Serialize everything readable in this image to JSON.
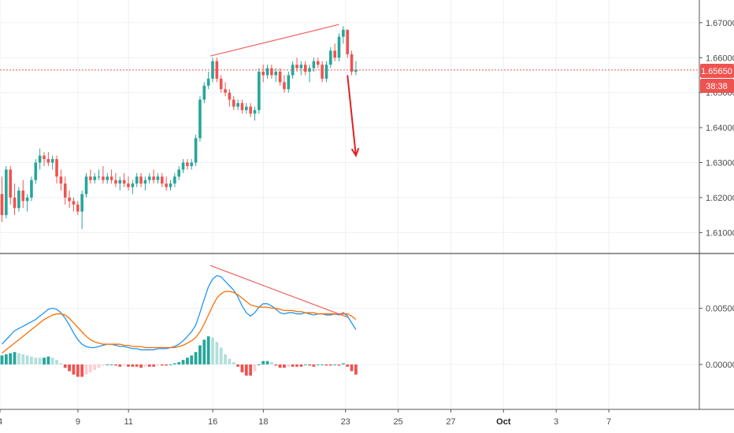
{
  "colors": {
    "up": "#26a69a",
    "down": "#ef5350",
    "hist_up_strong": "#26a69a",
    "hist_up_weak": "#b2dfdb",
    "hist_down_strong": "#ef5350",
    "hist_down_weak": "#ffcdd2",
    "macd_line": "#2196f3",
    "signal_line": "#ff6d00",
    "trendline": "#f06060",
    "arrow": "#e02020",
    "price_line": "#ef5350",
    "grid": "#eef0f3"
  },
  "price_badge": {
    "value": "1.65650",
    "countdown": "38:38"
  },
  "chart_data": [
    {
      "type": "candlestick",
      "pane": "price",
      "ylim": [
        1.604,
        1.6765
      ],
      "xlim": [
        0,
        104
      ],
      "y_ticks": [
        {
          "value": 1.61,
          "label": "1.61000"
        },
        {
          "value": 1.62,
          "label": "1.62000"
        },
        {
          "value": 1.63,
          "label": "1.63000"
        },
        {
          "value": 1.64,
          "label": "1.64000"
        },
        {
          "value": 1.65,
          "label": "1.65000"
        },
        {
          "value": 1.66,
          "label": "1.66000"
        },
        {
          "value": 1.67,
          "label": "1.67000"
        }
      ],
      "last_price": 1.6565,
      "candles": [
        [
          1.621,
          1.626,
          1.613,
          1.615
        ],
        [
          1.615,
          1.629,
          1.614,
          1.628
        ],
        [
          1.628,
          1.629,
          1.618,
          1.62
        ],
        [
          1.62,
          1.624,
          1.615,
          1.617
        ],
        [
          1.617,
          1.623,
          1.616,
          1.622
        ],
        [
          1.622,
          1.625,
          1.617,
          1.619
        ],
        [
          1.619,
          1.621,
          1.616,
          1.62
        ],
        [
          1.62,
          1.626,
          1.619,
          1.625
        ],
        [
          1.625,
          1.631,
          1.624,
          1.63
        ],
        [
          1.63,
          1.634,
          1.628,
          1.632
        ],
        [
          1.632,
          1.633,
          1.629,
          1.631
        ],
        [
          1.631,
          1.633,
          1.629,
          1.63
        ],
        [
          1.63,
          1.632,
          1.628,
          1.631
        ],
        [
          1.631,
          1.632,
          1.624,
          1.626
        ],
        [
          1.626,
          1.628,
          1.622,
          1.624
        ],
        [
          1.624,
          1.626,
          1.618,
          1.62
        ],
        [
          1.62,
          1.622,
          1.617,
          1.619
        ],
        [
          1.619,
          1.62,
          1.616,
          1.618
        ],
        [
          1.618,
          1.619,
          1.615,
          1.616
        ],
        [
          1.616,
          1.622,
          1.611,
          1.621
        ],
        [
          1.621,
          1.627,
          1.62,
          1.626
        ],
        [
          1.626,
          1.628,
          1.624,
          1.625
        ],
        [
          1.625,
          1.627,
          1.624,
          1.626
        ],
        [
          1.626,
          1.628,
          1.625,
          1.626
        ],
        [
          1.626,
          1.629,
          1.624,
          1.625
        ],
        [
          1.625,
          1.627,
          1.624,
          1.626
        ],
        [
          1.626,
          1.628,
          1.624,
          1.625
        ],
        [
          1.625,
          1.627,
          1.623,
          1.624
        ],
        [
          1.624,
          1.626,
          1.622,
          1.625
        ],
        [
          1.625,
          1.627,
          1.623,
          1.624
        ],
        [
          1.624,
          1.626,
          1.622,
          1.623
        ],
        [
          1.623,
          1.625,
          1.621,
          1.624
        ],
        [
          1.624,
          1.627,
          1.623,
          1.626
        ],
        [
          1.626,
          1.627,
          1.623,
          1.624
        ],
        [
          1.624,
          1.626,
          1.622,
          1.625
        ],
        [
          1.625,
          1.627,
          1.624,
          1.626
        ],
        [
          1.626,
          1.628,
          1.624,
          1.625
        ],
        [
          1.625,
          1.627,
          1.624,
          1.626
        ],
        [
          1.626,
          1.627,
          1.623,
          1.624
        ],
        [
          1.624,
          1.626,
          1.622,
          1.623
        ],
        [
          1.623,
          1.625,
          1.622,
          1.624
        ],
        [
          1.624,
          1.627,
          1.623,
          1.626
        ],
        [
          1.626,
          1.629,
          1.625,
          1.628
        ],
        [
          1.628,
          1.631,
          1.627,
          1.63
        ],
        [
          1.63,
          1.631,
          1.628,
          1.629
        ],
        [
          1.629,
          1.631,
          1.628,
          1.63
        ],
        [
          1.63,
          1.638,
          1.629,
          1.637
        ],
        [
          1.637,
          1.649,
          1.636,
          1.648
        ],
        [
          1.648,
          1.653,
          1.647,
          1.652
        ],
        [
          1.652,
          1.656,
          1.651,
          1.654
        ],
        [
          1.654,
          1.66,
          1.653,
          1.659
        ],
        [
          1.659,
          1.66,
          1.653,
          1.654
        ],
        [
          1.654,
          1.655,
          1.65,
          1.651
        ],
        [
          1.651,
          1.653,
          1.649,
          1.65
        ],
        [
          1.65,
          1.651,
          1.646,
          1.648
        ],
        [
          1.648,
          1.649,
          1.645,
          1.646
        ],
        [
          1.646,
          1.648,
          1.645,
          1.647
        ],
        [
          1.647,
          1.648,
          1.644,
          1.645
        ],
        [
          1.645,
          1.647,
          1.644,
          1.646
        ],
        [
          1.646,
          1.647,
          1.643,
          1.644
        ],
        [
          1.644,
          1.646,
          1.642,
          1.645
        ],
        [
          1.645,
          1.657,
          1.644,
          1.656
        ],
        [
          1.656,
          1.658,
          1.653,
          1.655
        ],
        [
          1.655,
          1.658,
          1.654,
          1.657
        ],
        [
          1.657,
          1.658,
          1.654,
          1.655
        ],
        [
          1.655,
          1.657,
          1.653,
          1.656
        ],
        [
          1.656,
          1.657,
          1.652,
          1.653
        ],
        [
          1.653,
          1.655,
          1.65,
          1.651
        ],
        [
          1.651,
          1.656,
          1.65,
          1.655
        ],
        [
          1.655,
          1.659,
          1.654,
          1.658
        ],
        [
          1.658,
          1.66,
          1.656,
          1.657
        ],
        [
          1.657,
          1.659,
          1.655,
          1.658
        ],
        [
          1.658,
          1.659,
          1.655,
          1.656
        ],
        [
          1.656,
          1.658,
          1.653,
          1.657
        ],
        [
          1.657,
          1.66,
          1.656,
          1.659
        ],
        [
          1.659,
          1.66,
          1.657,
          1.658
        ],
        [
          1.658,
          1.659,
          1.653,
          1.654
        ],
        [
          1.654,
          1.659,
          1.653,
          1.658
        ],
        [
          1.658,
          1.663,
          1.657,
          1.662
        ],
        [
          1.662,
          1.664,
          1.659,
          1.66
        ],
        [
          1.66,
          1.667,
          1.659,
          1.666
        ],
        [
          1.666,
          1.669,
          1.664,
          1.668
        ],
        [
          1.668,
          1.668,
          1.66,
          1.661
        ],
        [
          1.661,
          1.662,
          1.655,
          1.656
        ],
        [
          1.656,
          1.659,
          1.655,
          1.6565
        ]
      ],
      "volume_profile_note": "",
      "trendline": {
        "x": [
          49.5,
          80
        ],
        "y": [
          1.6605,
          1.6695
        ]
      },
      "arrow": {
        "x": [
          82,
          84
        ],
        "y": [
          1.655,
          1.632
        ]
      }
    },
    {
      "type": "macd",
      "pane": "indicator",
      "ylim": [
        -0.004,
        0.0098
      ],
      "xlim": [
        0,
        104
      ],
      "y_ticks": [
        {
          "value": 0.0,
          "label": "0.00000"
        },
        {
          "value": 0.005,
          "label": "0.00500"
        }
      ],
      "macd": [
        0.0018,
        0.0022,
        0.0026,
        0.003,
        0.0032,
        0.0034,
        0.0036,
        0.0038,
        0.004,
        0.0043,
        0.0046,
        0.0049,
        0.005,
        0.0049,
        0.0046,
        0.0041,
        0.0035,
        0.0028,
        0.0022,
        0.0018,
        0.0016,
        0.0015,
        0.0015,
        0.0016,
        0.0017,
        0.0018,
        0.0018,
        0.0017,
        0.0016,
        0.0016,
        0.0015,
        0.0014,
        0.0014,
        0.0013,
        0.0013,
        0.0013,
        0.0013,
        0.0014,
        0.0014,
        0.0014,
        0.0015,
        0.0016,
        0.0018,
        0.0021,
        0.0025,
        0.0029,
        0.0035,
        0.0046,
        0.0058,
        0.0069,
        0.0076,
        0.0079,
        0.0078,
        0.0074,
        0.007,
        0.0066,
        0.006,
        0.0052,
        0.0046,
        0.0043,
        0.0046,
        0.0051,
        0.0054,
        0.0054,
        0.0052,
        0.0049,
        0.0046,
        0.0045,
        0.0046,
        0.0046,
        0.0045,
        0.0045,
        0.0046,
        0.0045,
        0.0044,
        0.0045,
        0.0045,
        0.0044,
        0.0044,
        0.0045,
        0.0044,
        0.0046,
        0.0043,
        0.0037,
        0.0031
      ],
      "signal": [
        0.001,
        0.0013,
        0.0016,
        0.0019,
        0.0022,
        0.0025,
        0.0028,
        0.0031,
        0.0034,
        0.0037,
        0.004,
        0.0042,
        0.0044,
        0.0045,
        0.0045,
        0.0044,
        0.0041,
        0.0037,
        0.0033,
        0.0029,
        0.0025,
        0.0022,
        0.002,
        0.0019,
        0.0018,
        0.0018,
        0.0018,
        0.0018,
        0.0018,
        0.0017,
        0.0017,
        0.0016,
        0.0016,
        0.0016,
        0.0015,
        0.0015,
        0.0015,
        0.0015,
        0.0015,
        0.0015,
        0.0015,
        0.0015,
        0.0016,
        0.0017,
        0.0019,
        0.0021,
        0.0024,
        0.0029,
        0.0036,
        0.0044,
        0.0052,
        0.0059,
        0.0063,
        0.0065,
        0.0065,
        0.0064,
        0.0062,
        0.0059,
        0.0056,
        0.0053,
        0.0052,
        0.0051,
        0.0051,
        0.0051,
        0.005,
        0.005,
        0.0049,
        0.0048,
        0.0048,
        0.0048,
        0.0047,
        0.0047,
        0.0046,
        0.0046,
        0.0046,
        0.0045,
        0.0045,
        0.0045,
        0.0045,
        0.0045,
        0.0045,
        0.0045,
        0.0045,
        0.0043,
        0.004
      ],
      "trendline": {
        "x": [
          49.5,
          82
        ],
        "y": [
          0.0088,
          0.0042
        ]
      }
    }
  ],
  "x_axis": {
    "ticks": [
      {
        "x": 0,
        "label": "4"
      },
      {
        "x": 18.5,
        "label": "9"
      },
      {
        "x": 30.5,
        "label": "11"
      },
      {
        "x": 50.5,
        "label": "16"
      },
      {
        "x": 62.5,
        "label": "18"
      },
      {
        "x": 82,
        "label": "23"
      },
      {
        "x": 94.5,
        "label": "25"
      },
      {
        "x": 107,
        "label": "27"
      },
      {
        "x": 119.5,
        "label": "Oct",
        "bold": true
      },
      {
        "x": 132,
        "label": "3"
      },
      {
        "x": 144.5,
        "label": "7"
      }
    ]
  }
}
